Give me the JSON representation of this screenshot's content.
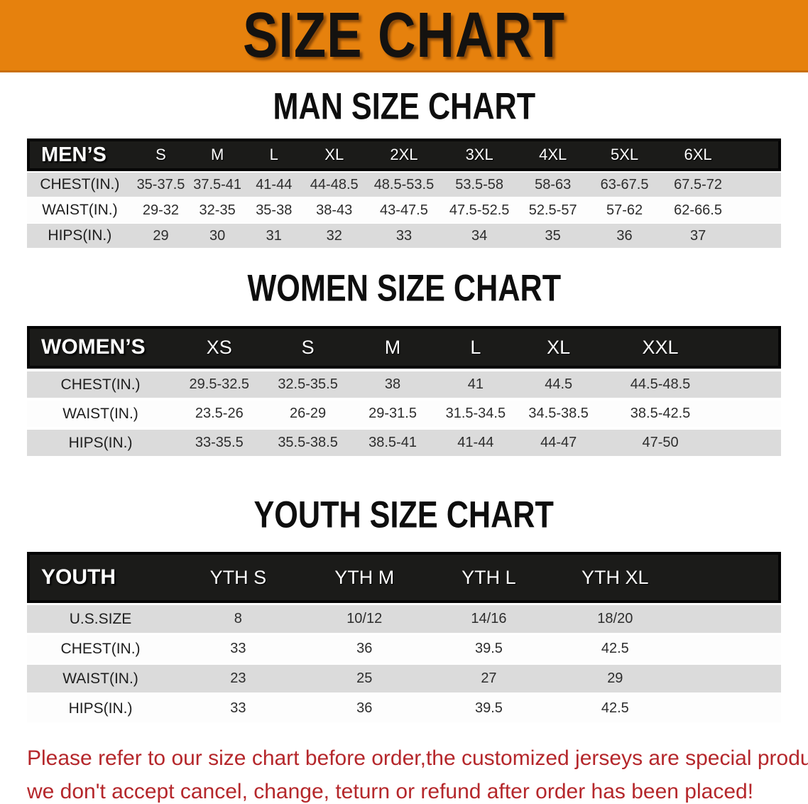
{
  "banner": {
    "title": "SIZE CHART",
    "bg_color": "#E6810D"
  },
  "men": {
    "heading": "MAN SIZE CHART",
    "table": {
      "corner": "MEN’S",
      "columns": [
        "S",
        "M",
        "L",
        "XL",
        "2XL",
        "3XL",
        "4XL",
        "5XL",
        "6XL"
      ],
      "rows": [
        {
          "label": "CHEST(IN.)",
          "values": [
            "35-37.5",
            "37.5-41",
            "41-44",
            "44-48.5",
            "48.5-53.5",
            "53.5-58",
            "58-63",
            "63-67.5",
            "67.5-72"
          ]
        },
        {
          "label": "WAIST(IN.)",
          "values": [
            "29-32",
            "32-35",
            "35-38",
            "38-43",
            "43-47.5",
            "47.5-52.5",
            "52.5-57",
            "57-62",
            "62-66.5"
          ]
        },
        {
          "label": "HIPS(IN.)",
          "values": [
            "29",
            "30",
            "31",
            "32",
            "33",
            "34",
            "35",
            "36",
            "37"
          ]
        }
      ]
    }
  },
  "women": {
    "heading": "WOMEN SIZE CHART",
    "table": {
      "corner": "WOMEN’S",
      "columns": [
        "XS",
        "S",
        "M",
        "L",
        "XL",
        "XXL"
      ],
      "rows": [
        {
          "label": "CHEST(IN.)",
          "values": [
            "29.5-32.5",
            "32.5-35.5",
            "38",
            "41",
            "44.5",
            "44.5-48.5"
          ]
        },
        {
          "label": "WAIST(IN.)",
          "values": [
            "23.5-26",
            "26-29",
            "29-31.5",
            "31.5-34.5",
            "34.5-38.5",
            "38.5-42.5"
          ]
        },
        {
          "label": "HIPS(IN.)",
          "values": [
            "33-35.5",
            "35.5-38.5",
            "38.5-41",
            "41-44",
            "44-47",
            "47-50"
          ]
        }
      ]
    }
  },
  "youth": {
    "heading": "YOUTH SIZE CHART",
    "table": {
      "corner": "YOUTH",
      "columns": [
        "YTH S",
        "YTH M",
        "YTH L",
        "YTH XL"
      ],
      "rows": [
        {
          "label": "U.S.SIZE",
          "values": [
            "8",
            "10/12",
            "14/16",
            "18/20"
          ]
        },
        {
          "label": "CHEST(IN.)",
          "values": [
            "33",
            "36",
            "39.5",
            "42.5"
          ]
        },
        {
          "label": "WAIST(IN.)",
          "values": [
            "23",
            "25",
            "27",
            "29"
          ]
        },
        {
          "label": "HIPS(IN.)",
          "values": [
            "33",
            "36",
            "39.5",
            "42.5"
          ]
        }
      ]
    }
  },
  "footer": {
    "line1": "Please refer to our size chart before order,the customized jerseys are special products,",
    "line2": "we don't accept cancel, change, teturn or refund after order has been placed!",
    "text_color": "#B5272B"
  }
}
